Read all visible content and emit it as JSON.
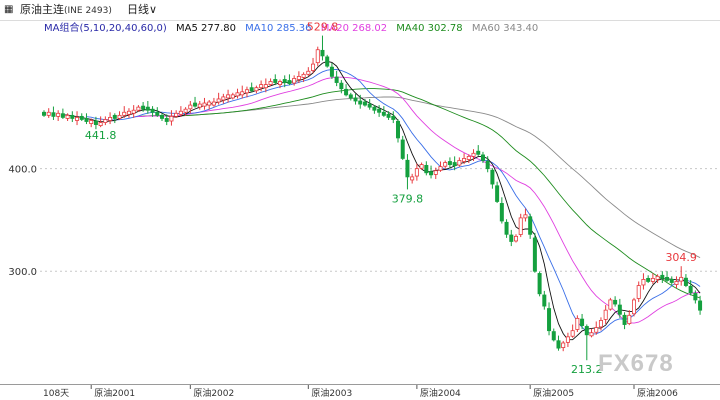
{
  "header": {
    "symbol_name": "原油主连",
    "symbol_code": "(INE 2493)",
    "period_label": "日线"
  },
  "indicators": {
    "group_label": "MA组合(5,10,20,40,60,0)",
    "ma5": "MA5 277.80",
    "ma10": "MA10 285.36",
    "ma20": "MA20 268.02",
    "ma40": "MA40 302.78",
    "ma60": "MA60 343.40"
  },
  "footer": {
    "bar_count": "108天"
  },
  "watermark": "FX678",
  "colors": {
    "up": "#e8383d",
    "down": "#15a03f",
    "ma5": "#111111",
    "ma10": "#3a6fe8",
    "ma20": "#e040e0",
    "ma40": "#1e8c1e",
    "ma60": "#8a8a8a",
    "grid": "#c8c8c8"
  },
  "chart_data": {
    "type": "candlestick",
    "ylim": [
      190,
      545
    ],
    "yticks": [
      {
        "label": "400.0",
        "value": 400
      },
      {
        "label": "300.0",
        "value": 300
      }
    ],
    "x_labels": [
      {
        "label": "原油2001",
        "bar": 10
      },
      {
        "label": "原油2002",
        "bar": 31
      },
      {
        "label": "原油2003",
        "bar": 56
      },
      {
        "label": "原油2004",
        "bar": 79
      },
      {
        "label": "原油2005",
        "bar": 103
      },
      {
        "label": "原油2006",
        "bar": 125
      }
    ],
    "annotations": [
      {
        "text": "529.8",
        "bar": 59,
        "value": 529.8,
        "pos": "above",
        "color": "#e8383d"
      },
      {
        "text": "441.8",
        "bar": 12,
        "value": 441.8,
        "pos": "below",
        "color": "#15a03f"
      },
      {
        "text": "379.8",
        "bar": 77,
        "value": 379.8,
        "pos": "below",
        "color": "#15a03f"
      },
      {
        "text": "213.2",
        "bar": 115,
        "value": 213.2,
        "pos": "below",
        "color": "#15a03f"
      },
      {
        "text": "304.9",
        "bar": 135,
        "value": 304.9,
        "pos": "above",
        "color": "#e8383d"
      }
    ],
    "closes": [
      452,
      455,
      451,
      454,
      450,
      452,
      449,
      450,
      448,
      446,
      447,
      443,
      445,
      448,
      450,
      449,
      452,
      455,
      456,
      457,
      460,
      458,
      457,
      455,
      452,
      449,
      446,
      451,
      454,
      456,
      458,
      462,
      461,
      463,
      464,
      465,
      465,
      468,
      470,
      472,
      472,
      474,
      475,
      477,
      476,
      479,
      482,
      482,
      485,
      484,
      485,
      484,
      483,
      488,
      490,
      492,
      495,
      502,
      516,
      510,
      500,
      490,
      484,
      478,
      472,
      469,
      466,
      463,
      462,
      460,
      457,
      455,
      452,
      450,
      448,
      430,
      410,
      392,
      392,
      400,
      404,
      396,
      394,
      398,
      402,
      406,
      404,
      403,
      408,
      410,
      412,
      415,
      414,
      408,
      400,
      385,
      368,
      349,
      336,
      329,
      334,
      352,
      355,
      336,
      300,
      278,
      266,
      242,
      233,
      225,
      230,
      236,
      242,
      254,
      247,
      238,
      240,
      245,
      252,
      262,
      272,
      268,
      258,
      248,
      257,
      272,
      286,
      292,
      290,
      293,
      295,
      293,
      291,
      289,
      290,
      294,
      286,
      279,
      272,
      262
    ]
  }
}
